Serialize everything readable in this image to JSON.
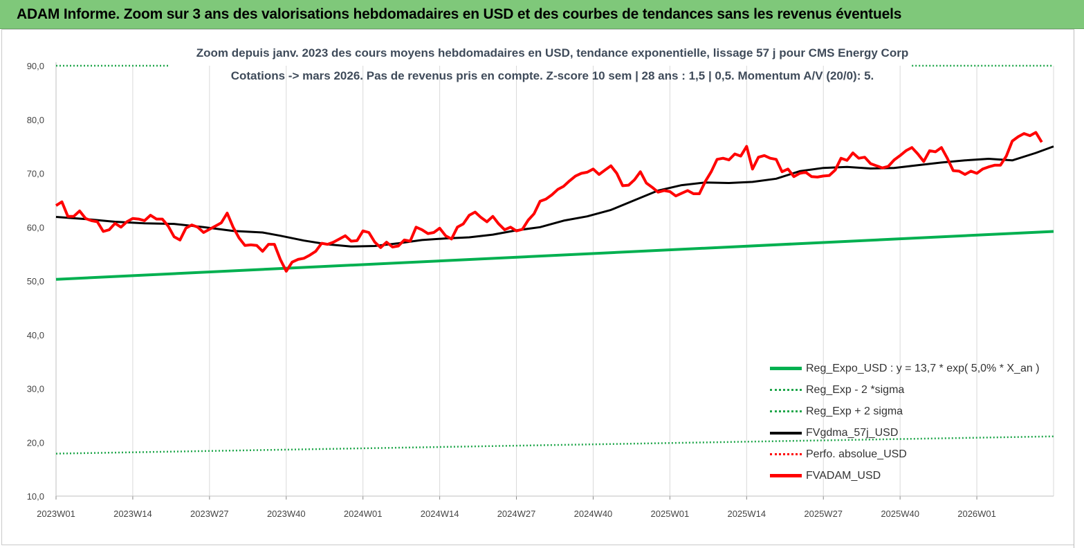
{
  "header": {
    "title": "ADAM Informe. Zoom sur 3 ans des valorisations hebdomadaires en USD et des courbes de tendances sans les revenus éventuels"
  },
  "colors": {
    "header_bg": "#7fc87a",
    "green": "#00b050",
    "dotted_green": "#1fa64a",
    "black": "#000000",
    "red": "#ff0000"
  },
  "chart_data": {
    "type": "line",
    "title": "Zoom depuis janv. 2023 des cours moyens hebdomadaires en USD, tendance exponentielle, lissage 57 j pour CMS Energy Corp",
    "subtitle": "Cotations -> mars 2026. Pas de revenus pris en compte. Z-score 10 sem | 28 ans : 1,5 | 0,5. Momentum A/V (20/0): 5.",
    "xlabel": "",
    "ylabel": "",
    "ylim": [
      10,
      90
    ],
    "yticks": [
      "90,0",
      "80,0",
      "70,0",
      "60,0",
      "50,0",
      "40,0",
      "30,0",
      "20,0",
      "10,0"
    ],
    "x_tick_labels": [
      "2023W01",
      "2023W14",
      "2023W27",
      "2023W40",
      "2024W01",
      "2024W14",
      "2024W27",
      "2024W40",
      "2025W01",
      "2025W14",
      "2025W27",
      "2025W40",
      "2026W01"
    ],
    "x_range_weeks": [
      0,
      169
    ],
    "grid": "vertical",
    "legend_position": "bottom-right",
    "series": [
      {
        "name": "Reg_Expo_USD : y = 13,7 * exp( 5,0% *  X_an )",
        "style": "solid-thick",
        "color": "#00b050",
        "points": [
          [
            0,
            50.3
          ],
          [
            169,
            59.2
          ]
        ]
      },
      {
        "name": "Reg_Exp - 2 *sigma",
        "style": "dotted",
        "color": "#1fa64a",
        "points": [
          [
            0,
            17.9
          ],
          [
            169,
            21.1
          ]
        ]
      },
      {
        "name": "Reg_Exp + 2 sigma",
        "style": "dotted",
        "color": "#1fa64a",
        "points": [
          [
            0,
            90.0
          ],
          [
            19,
            90.0
          ]
        ],
        "points2": [
          [
            145,
            90.0
          ],
          [
            169,
            90.0
          ]
        ]
      },
      {
        "name": "FVgdma_57j_USD",
        "style": "solid",
        "color": "#000000",
        "points": [
          [
            0,
            61.9
          ],
          [
            5,
            61.5
          ],
          [
            10,
            61.0
          ],
          [
            15,
            60.7
          ],
          [
            20,
            60.6
          ],
          [
            25,
            60.0
          ],
          [
            30,
            59.3
          ],
          [
            35,
            59.0
          ],
          [
            38,
            58.4
          ],
          [
            42,
            57.5
          ],
          [
            46,
            56.8
          ],
          [
            50,
            56.4
          ],
          [
            54,
            56.5
          ],
          [
            58,
            57.0
          ],
          [
            62,
            57.6
          ],
          [
            66,
            57.9
          ],
          [
            70,
            58.1
          ],
          [
            74,
            58.6
          ],
          [
            78,
            59.4
          ],
          [
            82,
            60.0
          ],
          [
            86,
            61.2
          ],
          [
            90,
            62.0
          ],
          [
            94,
            63.2
          ],
          [
            98,
            65.0
          ],
          [
            102,
            66.8
          ],
          [
            106,
            67.8
          ],
          [
            110,
            68.3
          ],
          [
            114,
            68.2
          ],
          [
            118,
            68.4
          ],
          [
            122,
            69.0
          ],
          [
            126,
            70.4
          ],
          [
            130,
            71.0
          ],
          [
            134,
            71.2
          ],
          [
            138,
            70.9
          ],
          [
            142,
            71.0
          ],
          [
            146,
            71.5
          ],
          [
            150,
            72.0
          ],
          [
            154,
            72.4
          ],
          [
            158,
            72.7
          ],
          [
            162,
            72.4
          ],
          [
            166,
            73.8
          ],
          [
            169,
            75.0
          ]
        ]
      },
      {
        "name": "Perfo. absolue_USD",
        "style": "dotted",
        "color": "#ff0000",
        "points": []
      },
      {
        "name": "FVADAM_USD",
        "style": "solid-thick",
        "color": "#ff0000",
        "points": [
          [
            0,
            64.0
          ],
          [
            1,
            64.7
          ],
          [
            2,
            62.0
          ],
          [
            3,
            62.0
          ],
          [
            4,
            63.0
          ],
          [
            5,
            61.6
          ],
          [
            6,
            61.2
          ],
          [
            7,
            61.0
          ],
          [
            8,
            59.2
          ],
          [
            9,
            59.5
          ],
          [
            10,
            60.7
          ],
          [
            11,
            60.0
          ],
          [
            12,
            61.0
          ],
          [
            13,
            61.6
          ],
          [
            14,
            61.5
          ],
          [
            15,
            61.2
          ],
          [
            16,
            62.2
          ],
          [
            17,
            61.5
          ],
          [
            18,
            61.5
          ],
          [
            19,
            60.2
          ],
          [
            20,
            58.2
          ],
          [
            21,
            57.6
          ],
          [
            22,
            59.8
          ],
          [
            23,
            60.4
          ],
          [
            24,
            60.0
          ],
          [
            25,
            59.0
          ],
          [
            26,
            59.6
          ],
          [
            27,
            60.2
          ],
          [
            28,
            60.8
          ],
          [
            29,
            62.6
          ],
          [
            30,
            60.0
          ],
          [
            31,
            58.0
          ],
          [
            32,
            56.6
          ],
          [
            33,
            56.7
          ],
          [
            34,
            56.6
          ],
          [
            35,
            55.5
          ],
          [
            36,
            56.8
          ],
          [
            37,
            56.8
          ],
          [
            38,
            54.0
          ],
          [
            39,
            51.8
          ],
          [
            40,
            53.5
          ],
          [
            41,
            54.0
          ],
          [
            42,
            54.2
          ],
          [
            43,
            54.8
          ],
          [
            44,
            55.5
          ],
          [
            45,
            57.0
          ],
          [
            46,
            56.8
          ],
          [
            47,
            57.2
          ],
          [
            48,
            57.8
          ],
          [
            49,
            58.4
          ],
          [
            50,
            57.4
          ],
          [
            51,
            57.5
          ],
          [
            52,
            59.3
          ],
          [
            53,
            59.0
          ],
          [
            54,
            57.2
          ],
          [
            55,
            56.2
          ],
          [
            56,
            57.2
          ],
          [
            57,
            56.3
          ],
          [
            58,
            56.5
          ],
          [
            59,
            57.6
          ],
          [
            60,
            57.4
          ],
          [
            61,
            60.0
          ],
          [
            62,
            59.5
          ],
          [
            63,
            58.8
          ],
          [
            64,
            59.0
          ],
          [
            65,
            59.8
          ],
          [
            66,
            58.4
          ],
          [
            67,
            57.8
          ],
          [
            68,
            60.0
          ],
          [
            69,
            60.6
          ],
          [
            70,
            62.2
          ],
          [
            71,
            62.8
          ],
          [
            72,
            61.8
          ],
          [
            73,
            61.0
          ],
          [
            74,
            62.0
          ],
          [
            75,
            60.6
          ],
          [
            76,
            59.5
          ],
          [
            77,
            60.0
          ],
          [
            78,
            59.3
          ],
          [
            79,
            59.6
          ],
          [
            80,
            61.3
          ],
          [
            81,
            62.5
          ],
          [
            82,
            64.8
          ],
          [
            83,
            65.2
          ],
          [
            84,
            66.0
          ],
          [
            85,
            67.0
          ],
          [
            86,
            67.6
          ],
          [
            87,
            68.6
          ],
          [
            88,
            69.5
          ],
          [
            89,
            70.0
          ],
          [
            90,
            70.2
          ],
          [
            91,
            70.8
          ],
          [
            92,
            69.8
          ],
          [
            93,
            70.6
          ],
          [
            94,
            71.4
          ],
          [
            95,
            70.0
          ],
          [
            96,
            67.7
          ],
          [
            97,
            67.8
          ],
          [
            98,
            68.8
          ],
          [
            99,
            70.3
          ],
          [
            100,
            68.2
          ],
          [
            101,
            67.4
          ],
          [
            102,
            66.5
          ],
          [
            103,
            66.8
          ],
          [
            104,
            66.6
          ],
          [
            105,
            65.8
          ],
          [
            106,
            66.3
          ],
          [
            107,
            66.8
          ],
          [
            108,
            66.2
          ],
          [
            109,
            66.2
          ],
          [
            110,
            68.5
          ],
          [
            111,
            70.3
          ],
          [
            112,
            72.6
          ],
          [
            113,
            72.8
          ],
          [
            114,
            72.5
          ],
          [
            115,
            73.6
          ],
          [
            116,
            73.2
          ],
          [
            117,
            75.0
          ],
          [
            118,
            70.8
          ],
          [
            119,
            73.0
          ],
          [
            120,
            73.3
          ],
          [
            121,
            72.8
          ],
          [
            122,
            72.6
          ],
          [
            123,
            70.3
          ],
          [
            124,
            70.8
          ],
          [
            125,
            69.4
          ],
          [
            126,
            70.0
          ],
          [
            127,
            70.2
          ],
          [
            128,
            69.4
          ],
          [
            129,
            69.3
          ],
          [
            130,
            69.5
          ],
          [
            131,
            69.6
          ],
          [
            132,
            70.6
          ],
          [
            133,
            72.8
          ],
          [
            134,
            72.4
          ],
          [
            135,
            73.8
          ],
          [
            136,
            72.8
          ],
          [
            137,
            73.0
          ],
          [
            138,
            71.8
          ],
          [
            139,
            71.4
          ],
          [
            140,
            71.0
          ],
          [
            141,
            71.3
          ],
          [
            142,
            72.5
          ],
          [
            143,
            73.3
          ],
          [
            144,
            74.2
          ],
          [
            145,
            74.8
          ],
          [
            146,
            73.6
          ],
          [
            147,
            72.2
          ],
          [
            148,
            74.2
          ],
          [
            149,
            74.0
          ],
          [
            150,
            74.8
          ],
          [
            151,
            72.8
          ],
          [
            152,
            70.5
          ],
          [
            153,
            70.4
          ],
          [
            154,
            69.8
          ],
          [
            155,
            70.4
          ],
          [
            156,
            70.0
          ],
          [
            157,
            70.8
          ],
          [
            158,
            71.2
          ],
          [
            159,
            71.5
          ],
          [
            160,
            71.5
          ],
          [
            161,
            73.2
          ],
          [
            162,
            76.0
          ],
          [
            163,
            76.8
          ],
          [
            164,
            77.4
          ],
          [
            165,
            77.0
          ],
          [
            166,
            77.6
          ],
          [
            167,
            75.8
          ]
        ]
      }
    ]
  }
}
